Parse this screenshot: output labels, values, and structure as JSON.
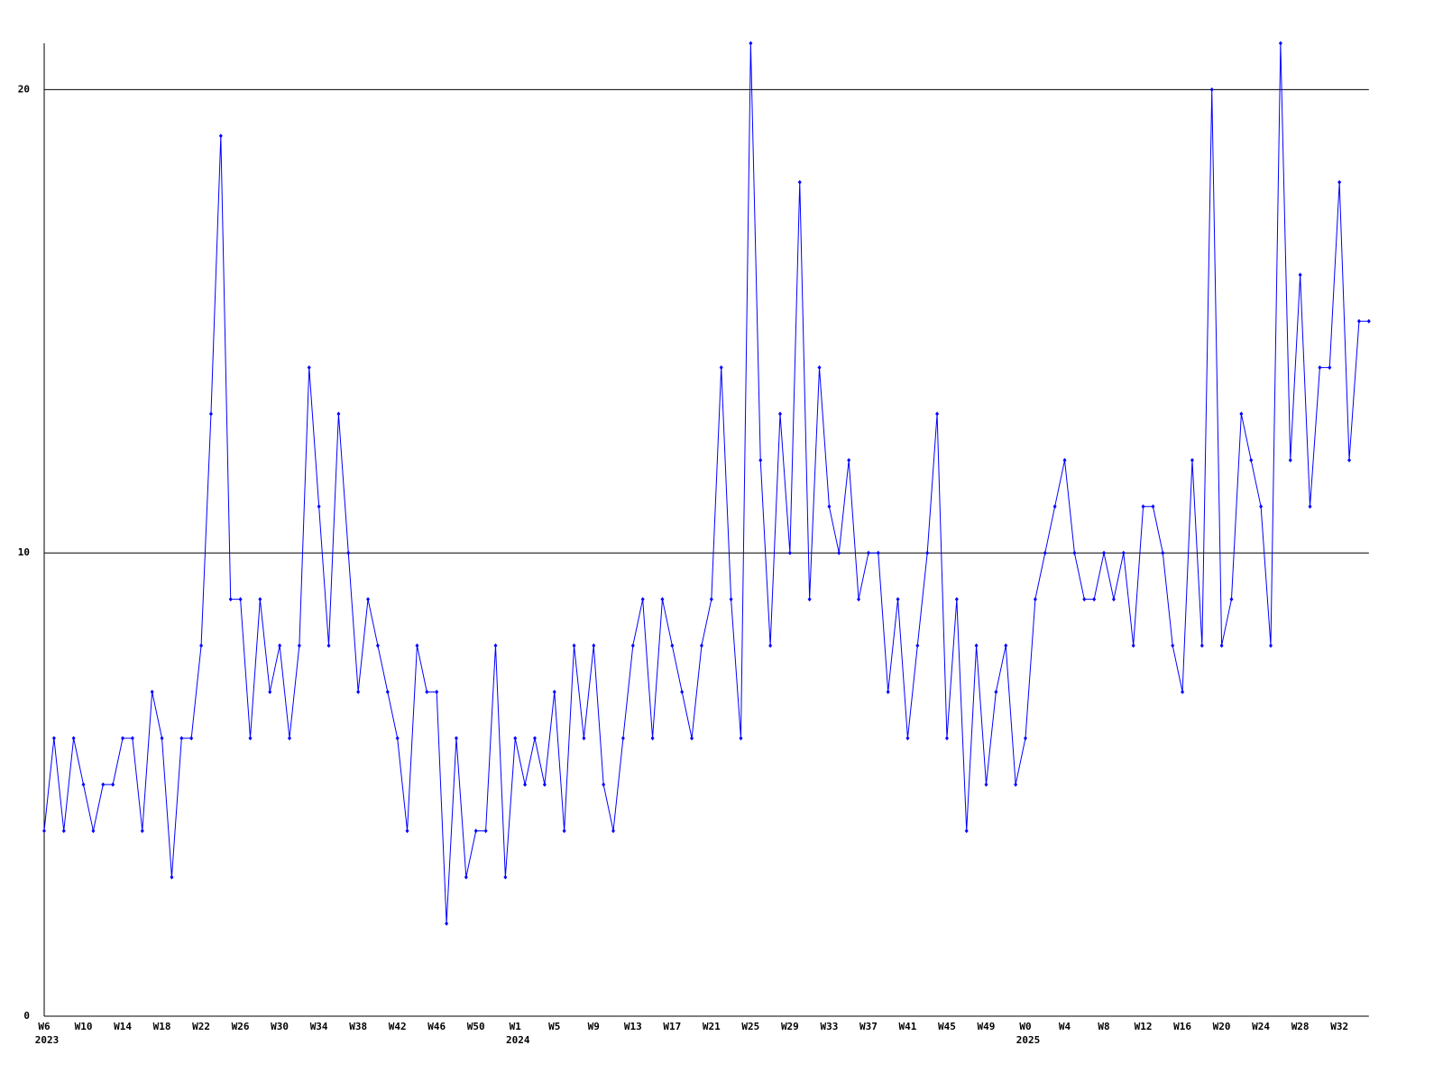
{
  "chart_data": {
    "type": "line",
    "categories": [
      "W6",
      null,
      null,
      null,
      "W10",
      null,
      null,
      null,
      "W14",
      null,
      null,
      null,
      "W18",
      null,
      null,
      null,
      "W22",
      null,
      null,
      null,
      "W26",
      null,
      null,
      null,
      "W30",
      null,
      null,
      null,
      "W34",
      null,
      null,
      null,
      "W38",
      null,
      null,
      null,
      "W42",
      null,
      null,
      null,
      "W46",
      null,
      null,
      null,
      "W50",
      null,
      null,
      null,
      "W1",
      null,
      null,
      null,
      "W5",
      null,
      null,
      null,
      "W9",
      null,
      null,
      null,
      "W13",
      null,
      null,
      null,
      "W17",
      null,
      null,
      null,
      "W21",
      null,
      null,
      null,
      "W25",
      null,
      null,
      null,
      "W29",
      null,
      null,
      null,
      "W33",
      null,
      null,
      null,
      "W37",
      null,
      null,
      null,
      "W41",
      null,
      null,
      null,
      "W45",
      null,
      null,
      null,
      "W49",
      null,
      null,
      null,
      "W0",
      null,
      null,
      null,
      "W4",
      null,
      null,
      null,
      "W8",
      null,
      null,
      null,
      "W12",
      null,
      null,
      null,
      "W16",
      null,
      null,
      null,
      "W20",
      null,
      null,
      null,
      "W24",
      null,
      null,
      null,
      "W28",
      null,
      null,
      null,
      "W32",
      null,
      null,
      null
    ],
    "category_years": [
      "2023",
      null,
      null,
      null,
      null,
      null,
      null,
      null,
      null,
      null,
      null,
      null,
      null,
      null,
      null,
      null,
      null,
      null,
      null,
      null,
      null,
      null,
      null,
      null,
      null,
      null,
      null,
      null,
      null,
      null,
      null,
      null,
      null,
      null,
      null,
      null,
      null,
      null,
      null,
      null,
      null,
      null,
      null,
      null,
      null,
      null,
      null,
      null,
      "2024",
      null,
      null,
      null,
      null,
      null,
      null,
      null,
      null,
      null,
      null,
      null,
      null,
      null,
      null,
      null,
      null,
      null,
      null,
      null,
      null,
      null,
      null,
      null,
      null,
      null,
      null,
      null,
      null,
      null,
      null,
      null,
      null,
      null,
      null,
      null,
      null,
      null,
      null,
      null,
      null,
      null,
      null,
      null,
      null,
      null,
      null,
      null,
      null,
      null,
      null,
      null,
      "2025",
      null,
      null,
      null,
      null,
      null,
      null,
      null,
      null,
      null,
      null,
      null,
      null,
      null,
      null,
      null,
      null,
      null,
      null,
      null,
      null,
      null,
      null,
      null,
      null,
      null,
      null,
      null,
      null,
      null,
      null,
      null,
      null,
      null,
      null,
      null
    ],
    "series": [
      {
        "color": "#0000ff",
        "values": [
          4,
          6,
          4,
          6,
          5,
          4,
          5,
          5,
          6,
          6,
          4,
          7,
          6,
          3,
          6,
          6,
          8,
          13,
          19,
          9,
          9,
          6,
          9,
          7,
          8,
          6,
          8,
          14,
          11,
          8,
          13,
          10,
          7,
          9,
          8,
          7,
          6,
          4,
          8,
          7,
          7,
          2,
          6,
          3,
          4,
          4,
          8,
          3,
          6,
          5,
          6,
          5,
          7,
          4,
          8,
          6,
          8,
          5,
          4,
          6,
          8,
          9,
          6,
          9,
          8,
          7,
          6,
          8,
          9,
          14,
          9,
          6,
          21,
          12,
          8,
          13,
          10,
          18,
          9,
          14,
          11,
          10,
          12,
          9,
          10,
          10,
          7,
          9,
          6,
          8,
          10,
          13,
          6,
          9,
          4,
          8,
          5,
          7,
          8,
          5,
          6,
          9,
          10,
          11,
          12,
          10,
          9,
          9,
          10,
          9,
          10,
          8,
          11,
          11,
          10,
          8,
          7,
          12,
          8,
          20,
          8,
          9,
          13,
          12,
          11,
          8,
          21,
          12,
          16,
          11,
          14,
          14,
          18,
          12,
          15,
          15
        ]
      }
    ],
    "ylim": [
      0,
      21
    ],
    "yticks": [
      0,
      10,
      20
    ],
    "grid": true
  }
}
